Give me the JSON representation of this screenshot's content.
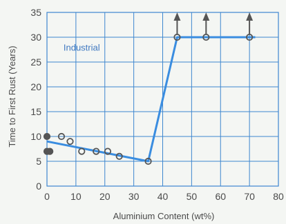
{
  "chart_data": {
    "type": "line",
    "title": "",
    "xlabel": "Aluminium Content (wt%)",
    "ylabel": "Time to First Rust (Years)",
    "xlim": [
      0,
      80
    ],
    "ylim": [
      0,
      35
    ],
    "x_ticks": [
      0,
      10,
      20,
      30,
      40,
      50,
      60,
      70,
      80
    ],
    "y_ticks": [
      0,
      5,
      10,
      15,
      20,
      25,
      30,
      35
    ],
    "grid": true,
    "annotations": [
      {
        "text": "Industrial",
        "x": 12,
        "y": 28
      }
    ],
    "trend_line": {
      "x": [
        0,
        35,
        45,
        72
      ],
      "y": [
        9,
        5,
        30,
        30
      ],
      "color": "#3a8de0"
    },
    "points": [
      {
        "x": 0,
        "y": 10,
        "filled": true
      },
      {
        "x": 0,
        "y": 7,
        "filled": true
      },
      {
        "x": 1,
        "y": 7,
        "filled": true
      },
      {
        "x": 5,
        "y": 10,
        "filled": false
      },
      {
        "x": 8,
        "y": 9,
        "filled": false
      },
      {
        "x": 12,
        "y": 7,
        "filled": false
      },
      {
        "x": 17,
        "y": 7,
        "filled": false
      },
      {
        "x": 21,
        "y": 7,
        "filled": false
      },
      {
        "x": 25,
        "y": 6,
        "filled": false
      },
      {
        "x": 35,
        "y": 5,
        "filled": false
      },
      {
        "x": 45,
        "y": 30,
        "filled": false,
        "arrow_up": true
      },
      {
        "x": 55,
        "y": 30,
        "filled": false,
        "arrow_up": true
      },
      {
        "x": 70,
        "y": 30,
        "filled": false,
        "arrow_up": true
      }
    ],
    "colors": {
      "grid": "#3d86cf",
      "marker": "#555555",
      "line": "#3a8de0",
      "background": "#f4f6f3"
    }
  }
}
